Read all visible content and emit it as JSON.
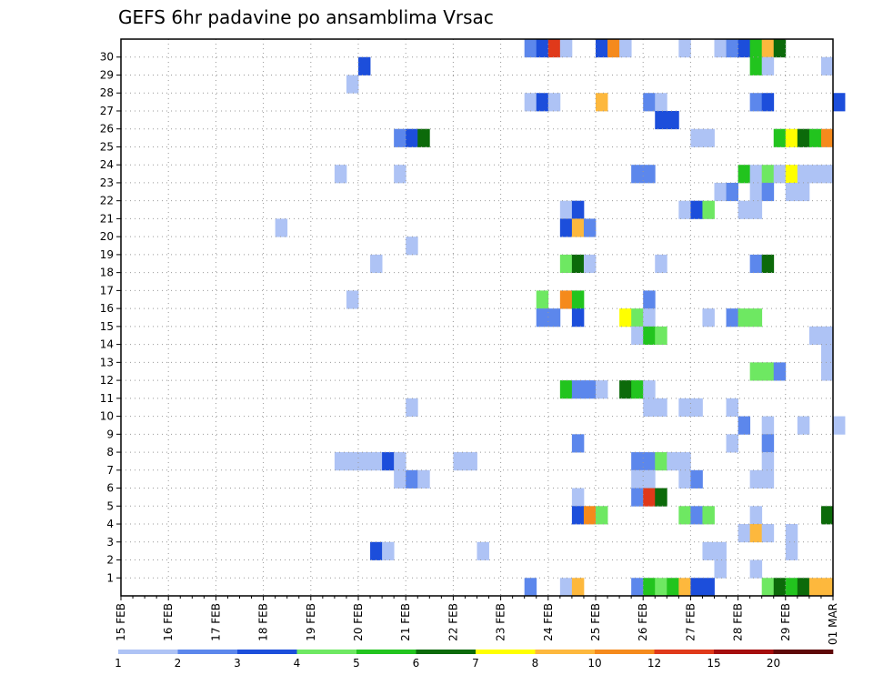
{
  "chart_data": {
    "type": "heatmap",
    "title": "GEFS 6hr padavine po ansamblima Vrsac",
    "xlabel": "",
    "ylabel": "",
    "x_tick_labels": [
      "15 FEB",
      "16 FEB",
      "17 FEB",
      "18 FEB",
      "19 FEB",
      "20 FEB",
      "21 FEB",
      "22 FEB",
      "23 FEB",
      "24 FEB",
      "25 FEB",
      "26 FEB",
      "27 FEB",
      "28 FEB",
      "29 FEB",
      "01 MAR"
    ],
    "y_tick_labels": [
      "1",
      "2",
      "3",
      "4",
      "5",
      "6",
      "7",
      "8",
      "9",
      "10",
      "11",
      "12",
      "13",
      "14",
      "15",
      "16",
      "17",
      "18",
      "19",
      "20",
      "21",
      "22",
      "23",
      "24",
      "25",
      "26",
      "27",
      "28",
      "29",
      "30"
    ],
    "members": [
      0,
      30
    ],
    "grid": true,
    "colorbar": {
      "boundaries": [
        "1",
        "2",
        "3",
        "4",
        "5",
        "6",
        "7",
        "8",
        "10",
        "12",
        "15",
        "20"
      ],
      "colors": [
        "#aec3f5",
        "#5c87ec",
        "#1c4edb",
        "#6ee862",
        "#22c41e",
        "#0c6a0a",
        "#ffff00",
        "#fdb83d",
        "#f58a1c",
        "#e0391a",
        "#a50d0d",
        "#5e0808"
      ]
    },
    "cells": [
      [
        30,
        34,
        2
      ],
      [
        30,
        35,
        3
      ],
      [
        30,
        36,
        10
      ],
      [
        30,
        37,
        1
      ],
      [
        30,
        40,
        3
      ],
      [
        30,
        41,
        9
      ],
      [
        30,
        42,
        1
      ],
      [
        30,
        47,
        1
      ],
      [
        30,
        50,
        1
      ],
      [
        30,
        51,
        2
      ],
      [
        30,
        52,
        3
      ],
      [
        30,
        53,
        5
      ],
      [
        30,
        54,
        8
      ],
      [
        30,
        55,
        6
      ],
      [
        29,
        20,
        3
      ],
      [
        29,
        53,
        5
      ],
      [
        29,
        54,
        1
      ],
      [
        29,
        59,
        1
      ],
      [
        28,
        19,
        1
      ],
      [
        27,
        34,
        1
      ],
      [
        27,
        35,
        3
      ],
      [
        27,
        36,
        1
      ],
      [
        27,
        40,
        8
      ],
      [
        27,
        44,
        2
      ],
      [
        27,
        45,
        1
      ],
      [
        27,
        53,
        2
      ],
      [
        27,
        54,
        3
      ],
      [
        27,
        60,
        3
      ],
      [
        26,
        45,
        3
      ],
      [
        26,
        46,
        3
      ],
      [
        25,
        23,
        2
      ],
      [
        25,
        24,
        3
      ],
      [
        25,
        25,
        6
      ],
      [
        25,
        48,
        1
      ],
      [
        25,
        49,
        1
      ],
      [
        25,
        55,
        5
      ],
      [
        25,
        56,
        7
      ],
      [
        25,
        57,
        6
      ],
      [
        25,
        58,
        5
      ],
      [
        25,
        59,
        9
      ],
      [
        23,
        18,
        1
      ],
      [
        23,
        23,
        1
      ],
      [
        23,
        43,
        2
      ],
      [
        23,
        44,
        2
      ],
      [
        23,
        52,
        5
      ],
      [
        23,
        53,
        1
      ],
      [
        23,
        54,
        4
      ],
      [
        23,
        55,
        1
      ],
      [
        23,
        56,
        7
      ],
      [
        23,
        57,
        1
      ],
      [
        23,
        58,
        1
      ],
      [
        23,
        59,
        1
      ],
      [
        22,
        50,
        1
      ],
      [
        22,
        51,
        2
      ],
      [
        22,
        53,
        1
      ],
      [
        22,
        54,
        2
      ],
      [
        22,
        56,
        1
      ],
      [
        22,
        57,
        1
      ],
      [
        21,
        37,
        1
      ],
      [
        21,
        38,
        3
      ],
      [
        21,
        47,
        1
      ],
      [
        21,
        48,
        3
      ],
      [
        21,
        49,
        4
      ],
      [
        21,
        52,
        1
      ],
      [
        21,
        53,
        1
      ],
      [
        20,
        13,
        1
      ],
      [
        20,
        37,
        3
      ],
      [
        20,
        38,
        8
      ],
      [
        20,
        39,
        2
      ],
      [
        19,
        24,
        1
      ],
      [
        18,
        21,
        1
      ],
      [
        18,
        37,
        4
      ],
      [
        18,
        38,
        6
      ],
      [
        18,
        39,
        1
      ],
      [
        18,
        45,
        1
      ],
      [
        18,
        53,
        2
      ],
      [
        18,
        54,
        6
      ],
      [
        16,
        19,
        1
      ],
      [
        16,
        35,
        4
      ],
      [
        16,
        37,
        9
      ],
      [
        16,
        38,
        5
      ],
      [
        16,
        44,
        2
      ],
      [
        15,
        35,
        2
      ],
      [
        15,
        36,
        2
      ],
      [
        15,
        38,
        3
      ],
      [
        15,
        42,
        7
      ],
      [
        15,
        43,
        4
      ],
      [
        15,
        44,
        1
      ],
      [
        15,
        49,
        1
      ],
      [
        15,
        51,
        2
      ],
      [
        15,
        52,
        4
      ],
      [
        15,
        53,
        4
      ],
      [
        14,
        43,
        1
      ],
      [
        14,
        44,
        5
      ],
      [
        14,
        45,
        4
      ],
      [
        14,
        58,
        1
      ],
      [
        14,
        59,
        1
      ],
      [
        13,
        59,
        1
      ],
      [
        12,
        53,
        4
      ],
      [
        12,
        54,
        4
      ],
      [
        12,
        55,
        2
      ],
      [
        12,
        59,
        1
      ],
      [
        11,
        37,
        5
      ],
      [
        11,
        38,
        2
      ],
      [
        11,
        39,
        2
      ],
      [
        11,
        40,
        1
      ],
      [
        11,
        42,
        6
      ],
      [
        11,
        43,
        5
      ],
      [
        11,
        44,
        1
      ],
      [
        10,
        24,
        1
      ],
      [
        10,
        44,
        1
      ],
      [
        10,
        45,
        1
      ],
      [
        10,
        47,
        1
      ],
      [
        10,
        48,
        1
      ],
      [
        10,
        51,
        1
      ],
      [
        9,
        52,
        2
      ],
      [
        9,
        54,
        1
      ],
      [
        9,
        57,
        1
      ],
      [
        9,
        60,
        1
      ],
      [
        8,
        38,
        2
      ],
      [
        8,
        51,
        1
      ],
      [
        8,
        54,
        2
      ],
      [
        7,
        18,
        1
      ],
      [
        7,
        19,
        1
      ],
      [
        7,
        20,
        1
      ],
      [
        7,
        21,
        1
      ],
      [
        7,
        22,
        3
      ],
      [
        7,
        23,
        1
      ],
      [
        7,
        28,
        1
      ],
      [
        7,
        29,
        1
      ],
      [
        7,
        43,
        2
      ],
      [
        7,
        44,
        2
      ],
      [
        7,
        45,
        4
      ],
      [
        7,
        46,
        1
      ],
      [
        7,
        47,
        1
      ],
      [
        7,
        54,
        1
      ],
      [
        6,
        23,
        1
      ],
      [
        6,
        24,
        2
      ],
      [
        6,
        25,
        1
      ],
      [
        6,
        43,
        1
      ],
      [
        6,
        44,
        1
      ],
      [
        6,
        47,
        1
      ],
      [
        6,
        48,
        2
      ],
      [
        6,
        53,
        1
      ],
      [
        6,
        54,
        1
      ],
      [
        5,
        38,
        1
      ],
      [
        5,
        43,
        2
      ],
      [
        5,
        44,
        10
      ],
      [
        5,
        45,
        6
      ],
      [
        4,
        38,
        3
      ],
      [
        4,
        39,
        9
      ],
      [
        4,
        40,
        4
      ],
      [
        4,
        47,
        4
      ],
      [
        4,
        48,
        2
      ],
      [
        4,
        49,
        4
      ],
      [
        4,
        53,
        1
      ],
      [
        4,
        59,
        6
      ],
      [
        3,
        52,
        1
      ],
      [
        3,
        53,
        8
      ],
      [
        3,
        54,
        1
      ],
      [
        3,
        56,
        1
      ],
      [
        2,
        21,
        3
      ],
      [
        2,
        22,
        1
      ],
      [
        2,
        30,
        1
      ],
      [
        2,
        49,
        1
      ],
      [
        2,
        50,
        1
      ],
      [
        2,
        56,
        1
      ],
      [
        1,
        50,
        1
      ],
      [
        1,
        53,
        1
      ],
      [
        0,
        34,
        2
      ],
      [
        0,
        37,
        1
      ],
      [
        0,
        38,
        8
      ],
      [
        0,
        43,
        2
      ],
      [
        0,
        44,
        5
      ],
      [
        0,
        45,
        4
      ],
      [
        0,
        46,
        5
      ],
      [
        0,
        47,
        8
      ],
      [
        0,
        48,
        3
      ],
      [
        0,
        49,
        3
      ],
      [
        0,
        54,
        4
      ],
      [
        0,
        55,
        6
      ],
      [
        0,
        56,
        5
      ],
      [
        0,
        57,
        6
      ],
      [
        0,
        58,
        8
      ],
      [
        0,
        59,
        8
      ]
    ]
  }
}
